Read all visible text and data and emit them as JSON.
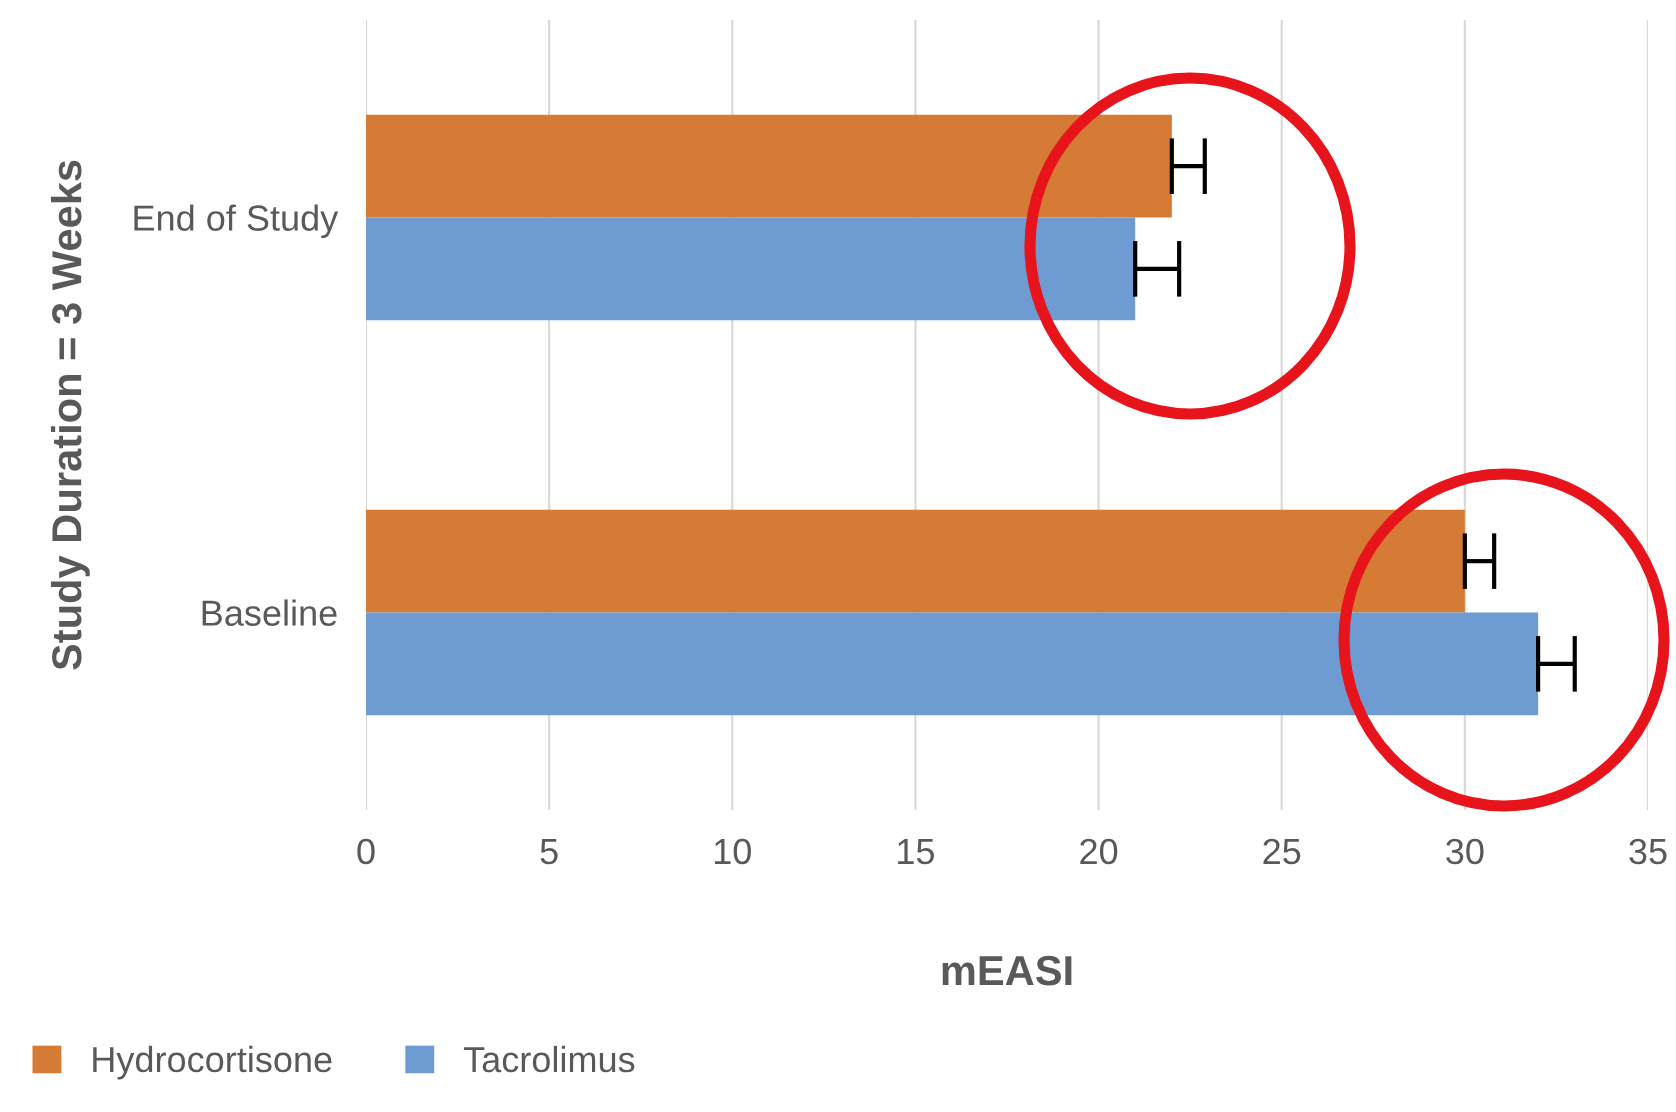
{
  "chart_data": {
    "type": "bar",
    "orientation": "horizontal",
    "xlabel": "mEASI",
    "ylabel": "Study Duration = 3 Weeks",
    "categories": [
      "End of Study",
      "Baseline"
    ],
    "series": [
      {
        "name": "Hydrocortisone",
        "color": "#d57b35",
        "values": [
          22,
          30
        ],
        "errors": [
          [
            22,
            22.9
          ],
          [
            30,
            30.8
          ]
        ]
      },
      {
        "name": "Tacrolimus",
        "color": "#6f9bd3",
        "values": [
          21,
          32
        ],
        "errors": [
          [
            21,
            22.2
          ],
          [
            32,
            33
          ]
        ]
      }
    ],
    "xlim": [
      0,
      35
    ],
    "xticks": [
      0,
      5,
      10,
      15,
      20,
      25,
      30,
      35
    ],
    "grid": "x",
    "legend": "bottom left"
  }
}
